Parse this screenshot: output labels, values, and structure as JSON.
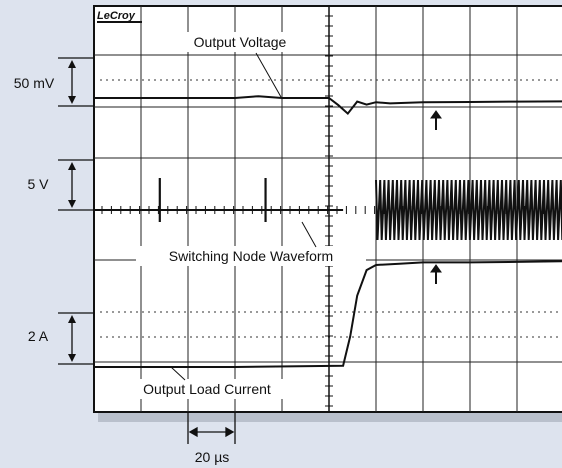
{
  "chart_data": {
    "type": "line",
    "brand": "LeCroy",
    "scale_labels": {
      "voltage": "50 mV",
      "switching": "5 V",
      "current": "2 A",
      "time": "20 µs"
    },
    "annotations": {
      "output_voltage": "Output Voltage",
      "switching_node": "Switching Node Waveform",
      "load_current": "Output Load Current"
    },
    "grid": true,
    "grid_divisions": {
      "x": 10,
      "y": 8
    },
    "series": [
      {
        "name": "Output Voltage",
        "x": [
          0,
          1,
          2,
          3,
          3.5,
          4,
          4.5,
          5,
          5.2,
          5.4,
          5.6,
          5.8,
          6,
          6.3,
          7,
          8,
          9,
          10
        ],
        "y": [
          0,
          0,
          0,
          0,
          0.15,
          0,
          0,
          0,
          -0.6,
          -1.3,
          -0.3,
          -0.55,
          -0.35,
          -0.45,
          -0.35,
          -0.33,
          -0.3,
          -0.28
        ]
      },
      {
        "name": "Switching Node Waveform",
        "x": [
          0,
          2,
          4,
          5.3,
          10
        ],
        "y": [
          0,
          0,
          0,
          0,
          0
        ]
      },
      {
        "name": "Output Load Current",
        "x": [
          0,
          3,
          5.3,
          5.45,
          5.6,
          5.8,
          6,
          6.5,
          7,
          8,
          9,
          10
        ],
        "y": [
          0,
          0,
          0.05,
          1.2,
          2.8,
          3.8,
          4.0,
          4.05,
          4.1,
          4.1,
          4.12,
          4.15
        ]
      }
    ]
  }
}
